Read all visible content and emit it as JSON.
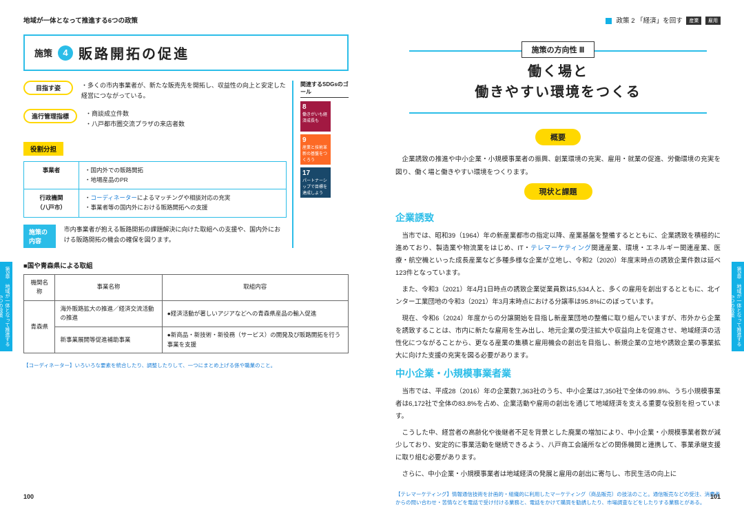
{
  "left": {
    "header": "地域が一体となって推進する6つの政策",
    "tab": {
      "chapter": "第5章",
      "text": "地域が一体となって推進する　6つの政策"
    },
    "policy": {
      "label": "施策",
      "num": "4",
      "title": "販路開拓の促進"
    },
    "sdgs": {
      "title": "関連するSDGsのゴール",
      "items": [
        {
          "n": "8",
          "t": "働きがいも経済成長も",
          "color": "#a21942"
        },
        {
          "n": "9",
          "t": "産業と技術革新の基盤をつくろう",
          "color": "#fd6925"
        },
        {
          "n": "17",
          "t": "パートナーシップで目標を達成しよう",
          "color": "#19486a"
        }
      ]
    },
    "aim": {
      "label": "目指す姿",
      "text": "・多くの市内事業者が、新たな販売先を開拓し、収益性の向上と安定した経営につながっている。"
    },
    "kpi": {
      "label": "進行管理指標",
      "text": "・商談成立件数\n・八戸都市圏交流プラザの来店者数"
    },
    "roles": {
      "label": "役割分担",
      "rows": [
        {
          "h": "事業者",
          "c": "・国内外での販路開拓\n・地場産品のPR"
        },
        {
          "h": "行政機関\n（八戸市）",
          "c": "・コーディネーターによるマッチングや相談対応の充実\n・事業者等の国内外における販路開拓への支援"
        }
      ]
    },
    "content": {
      "label": "施策の内容",
      "text": "市内事業者が抱える販路開拓の課題解決に向けた取組への支援や、国内外における販路開拓の機会の確保を図ります。"
    },
    "pref": {
      "title": "■国や青森県による取組",
      "headers": [
        "機関名称",
        "事業名称",
        "取組内容"
      ],
      "rows": [
        {
          "org": "青森県",
          "name": "海外販路拡大の推進／経済交流活動の推進",
          "desc": "●経済活動が著しいアジアなどへの青森県産品の輸入促進"
        },
        {
          "name": "新事業展開等促進補助事業",
          "desc": "●新商品・新技術・新役務（サービス）の開発及び販路開拓を行う事業を支援"
        }
      ]
    },
    "foot": "【コーディネーター】いろいろな要素を統合したり、調整したりして、一つにまとめ上げる係や職業のこと。",
    "pageno": "100"
  },
  "right": {
    "header": {
      "square": true,
      "text": "政策 2 「経済」を回す",
      "tags": [
        "産業",
        "雇用"
      ]
    },
    "tab": {
      "chapter": "第5章",
      "text": "地域が一体となって推進する　6つの政策"
    },
    "direction": {
      "box": "施策の方向性 Ⅲ",
      "title1": "働く場と",
      "title2": "働きやすい環境をつくる"
    },
    "summary": {
      "label": "概要",
      "text": "企業誘致の推進や中小企業・小規模事業者の振興、創業環境の充実、雇用・就業の促進、労働環境の充実を図り、働く場と働きやすい環境をつくります。"
    },
    "issues": {
      "label": "現状と課題",
      "sections": [
        {
          "h": "企業誘致",
          "paras": [
            "当市では、昭和39（1964）年の新産業都市の指定以降、産業基盤を整備するとともに、企業誘致を積極的に進めており、製造業や物流業をはじめ、IT・テレマーケティング関連産業、環境・エネルギー関連産業、医療・航空機といった成長産業など多種多様な企業が立地し、令和2（2020）年度末時点の誘致企業件数は延べ123件となっています。",
            "また、令和3（2021）年4月1日時点の誘致企業従業員数は5,534人と、多くの雇用を創出するとともに、北インター工業団地の令和3（2021）年3月末時点における分譲率は95.8%にのぼっています。",
            "現在、令和6（2024）年度からの分譲開始を目指し新産業団地の整備に取り組んでいますが、市外から企業を誘致することは、市内に新たな雇用を生み出し、地元企業の受注拡大や収益向上を促進させ、地域経済の活性化につながることから、更なる産業の集積と雇用機会の創出を目指し、新規企業の立地や誘致企業の事業拡大に向けた支援の充実を図る必要があります。"
          ]
        },
        {
          "h": "中小企業・小規模事業者業",
          "paras": [
            "当市では、平成28（2016）年の企業数7,363社のうち、中小企業は7,350社で全体の99.8%、うち小規模事業者は6,172社で全体の83.8%を占め、企業活動や雇用の創出を通じて地域経済を支える重要な役割を担っています。",
            "こうした中、経営者の高齢化や後継者不足を背景とした廃業の増加により、中小企業・小規模事業者数が減少しており、安定的に事業活動を継続できるよう、八戸商工会議所などの関係機関と連携して、事業承継支援に取り組む必要があります。",
            "さらに、中小企業・小規模事業者は地域経済の発展と雇用の創出に寄与し、市民生活の向上に"
          ]
        }
      ]
    },
    "foot": "【テレマーケティング】情報通信技術を計画的・組織的に利用したマーケティング（商品販売）の技法のこと。通信販売などの受注、消費者からの問い合わせ・苦情などを電話で受け付ける業務と、電話をかけて購買を勧誘したり、市場調査などをしたりする業務とがある。",
    "pageno": "101"
  }
}
